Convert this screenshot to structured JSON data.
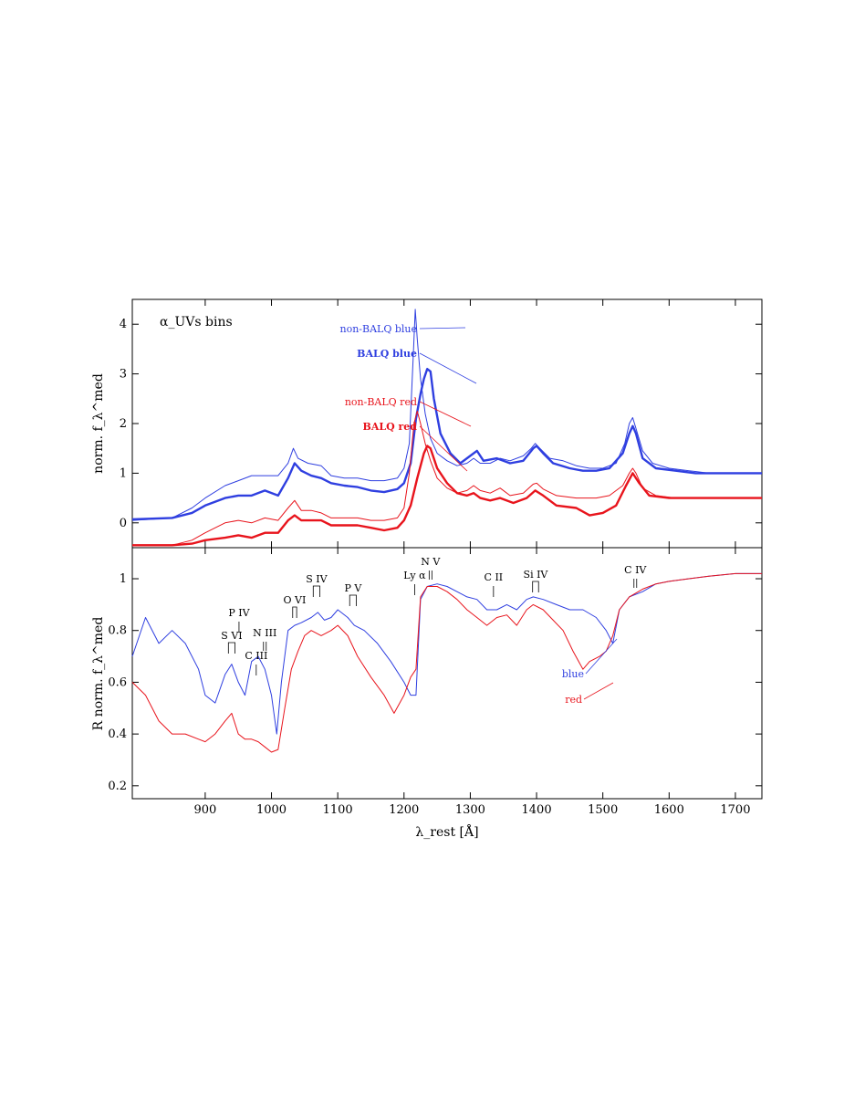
{
  "colors": {
    "blue": "#2f3fe0",
    "red": "#e8141c",
    "axis": "#000000"
  },
  "chart_data": [
    {
      "type": "line",
      "panel": "top",
      "title": "",
      "panel_label": "α_UVs bins",
      "xlabel": "λ_rest [Å]",
      "ylabel": "norm. f_λ^med",
      "xlim": [
        790,
        1740
      ],
      "ylim": [
        -0.5,
        4.5
      ],
      "xticks": [
        900,
        1000,
        1100,
        1200,
        1300,
        1400,
        1500,
        1600,
        1700
      ],
      "yticks": [
        0,
        1,
        2,
        3,
        4
      ],
      "series": [
        {
          "name": "non-BALQ blue",
          "color": "blue",
          "weight": "thin",
          "x": [
            790,
            850,
            880,
            900,
            930,
            950,
            970,
            990,
            1010,
            1025,
            1033,
            1040,
            1055,
            1075,
            1090,
            1110,
            1130,
            1150,
            1170,
            1190,
            1200,
            1208,
            1214,
            1217,
            1220,
            1225,
            1232,
            1240,
            1250,
            1265,
            1280,
            1295,
            1305,
            1315,
            1330,
            1345,
            1360,
            1380,
            1392,
            1398,
            1405,
            1420,
            1440,
            1460,
            1480,
            1500,
            1520,
            1533,
            1540,
            1545,
            1550,
            1560,
            1575,
            1600,
            1630,
            1660,
            1700,
            1740
          ],
          "y": [
            0.05,
            0.1,
            0.3,
            0.5,
            0.75,
            0.85,
            0.95,
            0.95,
            0.95,
            1.2,
            1.5,
            1.3,
            1.2,
            1.15,
            0.95,
            0.9,
            0.9,
            0.85,
            0.85,
            0.9,
            1.1,
            1.6,
            3.4,
            4.3,
            3.7,
            2.9,
            2.2,
            1.7,
            1.4,
            1.25,
            1.15,
            1.2,
            1.3,
            1.2,
            1.2,
            1.3,
            1.25,
            1.35,
            1.5,
            1.6,
            1.5,
            1.3,
            1.25,
            1.15,
            1.1,
            1.1,
            1.2,
            1.6,
            2.0,
            2.12,
            1.9,
            1.45,
            1.2,
            1.1,
            1.05,
            1.0,
            1.0,
            1.0
          ]
        },
        {
          "name": "BALQ blue",
          "color": "blue",
          "weight": "thick",
          "x": [
            790,
            850,
            880,
            900,
            930,
            950,
            970,
            990,
            1010,
            1025,
            1035,
            1045,
            1060,
            1075,
            1090,
            1110,
            1130,
            1150,
            1170,
            1190,
            1200,
            1210,
            1218,
            1225,
            1230,
            1235,
            1240,
            1245,
            1255,
            1270,
            1285,
            1300,
            1310,
            1320,
            1340,
            1360,
            1380,
            1395,
            1400,
            1410,
            1425,
            1450,
            1470,
            1490,
            1510,
            1530,
            1540,
            1545,
            1550,
            1560,
            1580,
            1610,
            1640,
            1680,
            1710,
            1740
          ],
          "y": [
            0.07,
            0.1,
            0.2,
            0.35,
            0.5,
            0.55,
            0.55,
            0.65,
            0.55,
            0.9,
            1.2,
            1.05,
            0.95,
            0.9,
            0.8,
            0.75,
            0.72,
            0.65,
            0.62,
            0.68,
            0.8,
            1.2,
            2.1,
            2.6,
            2.9,
            3.1,
            3.05,
            2.5,
            1.8,
            1.4,
            1.2,
            1.35,
            1.45,
            1.25,
            1.3,
            1.2,
            1.25,
            1.5,
            1.55,
            1.4,
            1.2,
            1.1,
            1.05,
            1.05,
            1.1,
            1.4,
            1.8,
            1.95,
            1.8,
            1.3,
            1.1,
            1.05,
            1.0,
            1.0,
            1.0,
            1.0
          ]
        },
        {
          "name": "non-BALQ red",
          "color": "red",
          "weight": "thin",
          "x": [
            790,
            850,
            880,
            900,
            930,
            950,
            970,
            990,
            1010,
            1025,
            1035,
            1045,
            1060,
            1075,
            1090,
            1110,
            1130,
            1150,
            1170,
            1190,
            1200,
            1208,
            1215,
            1220,
            1225,
            1232,
            1240,
            1250,
            1265,
            1280,
            1295,
            1305,
            1315,
            1330,
            1345,
            1360,
            1380,
            1395,
            1400,
            1410,
            1430,
            1460,
            1490,
            1510,
            1530,
            1540,
            1545,
            1550,
            1560,
            1580,
            1610,
            1650,
            1700,
            1740
          ],
          "y": [
            -0.45,
            -0.45,
            -0.35,
            -0.2,
            0.0,
            0.05,
            0.0,
            0.1,
            0.05,
            0.3,
            0.45,
            0.25,
            0.25,
            0.2,
            0.1,
            0.1,
            0.1,
            0.05,
            0.05,
            0.1,
            0.3,
            1.0,
            2.0,
            2.25,
            2.0,
            1.6,
            1.25,
            0.9,
            0.7,
            0.6,
            0.65,
            0.75,
            0.65,
            0.6,
            0.7,
            0.55,
            0.6,
            0.78,
            0.8,
            0.68,
            0.55,
            0.5,
            0.5,
            0.55,
            0.75,
            1.0,
            1.1,
            1.0,
            0.7,
            0.55,
            0.5,
            0.5,
            0.5,
            0.5
          ]
        },
        {
          "name": "BALQ red",
          "color": "red",
          "weight": "thick",
          "x": [
            790,
            850,
            880,
            900,
            930,
            950,
            970,
            990,
            1010,
            1025,
            1035,
            1045,
            1060,
            1075,
            1090,
            1110,
            1130,
            1150,
            1170,
            1190,
            1200,
            1210,
            1220,
            1230,
            1235,
            1240,
            1250,
            1265,
            1280,
            1295,
            1305,
            1315,
            1330,
            1345,
            1365,
            1385,
            1398,
            1410,
            1430,
            1460,
            1480,
            1500,
            1520,
            1535,
            1545,
            1555,
            1570,
            1600,
            1650,
            1700,
            1740
          ],
          "y": [
            -0.45,
            -0.45,
            -0.42,
            -0.35,
            -0.3,
            -0.25,
            -0.3,
            -0.2,
            -0.2,
            0.05,
            0.15,
            0.05,
            0.05,
            0.05,
            -0.05,
            -0.05,
            -0.05,
            -0.1,
            -0.15,
            -0.1,
            0.05,
            0.35,
            0.9,
            1.4,
            1.55,
            1.5,
            1.1,
            0.8,
            0.6,
            0.55,
            0.6,
            0.5,
            0.45,
            0.5,
            0.4,
            0.5,
            0.65,
            0.55,
            0.35,
            0.3,
            0.15,
            0.2,
            0.35,
            0.75,
            1.0,
            0.8,
            0.55,
            0.5,
            0.5,
            0.5,
            0.5
          ]
        }
      ],
      "labels": [
        {
          "text": "non-BALQ blue",
          "color": "blue",
          "bold": false
        },
        {
          "text": "BALQ blue",
          "color": "blue",
          "bold": true
        },
        {
          "text": "non-BALQ red",
          "color": "red",
          "bold": false
        },
        {
          "text": "BALQ red",
          "color": "red",
          "bold": true
        }
      ]
    },
    {
      "type": "line",
      "panel": "bottom",
      "title": "",
      "xlabel": "λ_rest [Å]",
      "ylabel": "R norm. f_λ^med",
      "xlim": [
        790,
        1740
      ],
      "ylim": [
        0.15,
        1.12
      ],
      "xticks": [
        900,
        1000,
        1100,
        1200,
        1300,
        1400,
        1500,
        1600,
        1700
      ],
      "yticks": [
        0.2,
        0.4,
        0.6,
        0.8,
        1.0
      ],
      "ytick_labels": [
        "0.2",
        "0.4",
        "0.6",
        "0.8",
        "1"
      ],
      "series": [
        {
          "name": "blue",
          "color": "blue",
          "x": [
            790,
            810,
            830,
            850,
            870,
            890,
            900,
            915,
            930,
            940,
            950,
            960,
            970,
            980,
            990,
            1000,
            1008,
            1015,
            1025,
            1035,
            1045,
            1060,
            1070,
            1080,
            1090,
            1100,
            1115,
            1125,
            1140,
            1160,
            1180,
            1200,
            1210,
            1218,
            1225,
            1235,
            1250,
            1265,
            1280,
            1295,
            1310,
            1325,
            1340,
            1355,
            1370,
            1385,
            1395,
            1410,
            1430,
            1450,
            1470,
            1490,
            1505,
            1515,
            1525,
            1540,
            1560,
            1580,
            1600,
            1630,
            1660,
            1700,
            1740
          ],
          "y": [
            0.7,
            0.85,
            0.75,
            0.8,
            0.75,
            0.65,
            0.55,
            0.52,
            0.63,
            0.67,
            0.6,
            0.55,
            0.68,
            0.7,
            0.65,
            0.55,
            0.4,
            0.6,
            0.8,
            0.82,
            0.83,
            0.85,
            0.87,
            0.84,
            0.85,
            0.88,
            0.85,
            0.82,
            0.8,
            0.75,
            0.68,
            0.6,
            0.55,
            0.55,
            0.92,
            0.97,
            0.98,
            0.97,
            0.95,
            0.93,
            0.92,
            0.88,
            0.88,
            0.9,
            0.88,
            0.92,
            0.93,
            0.92,
            0.9,
            0.88,
            0.88,
            0.85,
            0.8,
            0.75,
            0.88,
            0.93,
            0.95,
            0.98,
            0.99,
            1.0,
            1.01,
            1.02,
            1.02
          ]
        },
        {
          "name": "red",
          "color": "red",
          "x": [
            790,
            810,
            830,
            850,
            870,
            890,
            900,
            915,
            930,
            940,
            950,
            960,
            970,
            980,
            990,
            1000,
            1010,
            1020,
            1030,
            1040,
            1050,
            1060,
            1075,
            1090,
            1100,
            1115,
            1130,
            1150,
            1170,
            1185,
            1200,
            1210,
            1218,
            1225,
            1235,
            1250,
            1265,
            1280,
            1295,
            1310,
            1325,
            1340,
            1355,
            1370,
            1385,
            1395,
            1410,
            1425,
            1440,
            1455,
            1470,
            1480,
            1495,
            1505,
            1515,
            1525,
            1540,
            1560,
            1580,
            1600,
            1630,
            1660,
            1700,
            1740
          ],
          "y": [
            0.6,
            0.55,
            0.45,
            0.4,
            0.4,
            0.38,
            0.37,
            0.4,
            0.45,
            0.48,
            0.4,
            0.38,
            0.38,
            0.37,
            0.35,
            0.33,
            0.34,
            0.5,
            0.65,
            0.72,
            0.78,
            0.8,
            0.78,
            0.8,
            0.82,
            0.78,
            0.7,
            0.62,
            0.55,
            0.48,
            0.55,
            0.62,
            0.65,
            0.93,
            0.97,
            0.97,
            0.95,
            0.92,
            0.88,
            0.85,
            0.82,
            0.85,
            0.86,
            0.82,
            0.88,
            0.9,
            0.88,
            0.84,
            0.8,
            0.72,
            0.65,
            0.68,
            0.7,
            0.72,
            0.78,
            0.88,
            0.93,
            0.96,
            0.98,
            0.99,
            1.0,
            1.01,
            1.02,
            1.02
          ]
        }
      ],
      "labels": [
        {
          "text": "blue",
          "color": "blue"
        },
        {
          "text": "red",
          "color": "red"
        }
      ],
      "line_ids": [
        {
          "text": "S VI",
          "x1": 935,
          "x2": 945,
          "kind": "doublet"
        },
        {
          "text": "P IV",
          "x": 951,
          "kind": "single"
        },
        {
          "text": "C III",
          "x": 977,
          "kind": "single"
        },
        {
          "text": "N III",
          "x": 990,
          "kind": "double-tick"
        },
        {
          "text": "O VI",
          "x1": 1032,
          "x2": 1038,
          "kind": "doublet"
        },
        {
          "text": "S IV",
          "x1": 1063,
          "x2": 1073,
          "kind": "doublet"
        },
        {
          "text": "P V",
          "x1": 1118,
          "x2": 1128,
          "kind": "doublet"
        },
        {
          "text": "Ly α",
          "x": 1216,
          "kind": "single"
        },
        {
          "text": "N V",
          "x": 1240,
          "kind": "double-tick"
        },
        {
          "text": "C II",
          "x": 1335,
          "kind": "single"
        },
        {
          "text": "Si IV",
          "x1": 1394,
          "x2": 1403,
          "kind": "doublet"
        },
        {
          "text": "C IV",
          "x": 1549,
          "kind": "double-tick"
        }
      ]
    }
  ]
}
